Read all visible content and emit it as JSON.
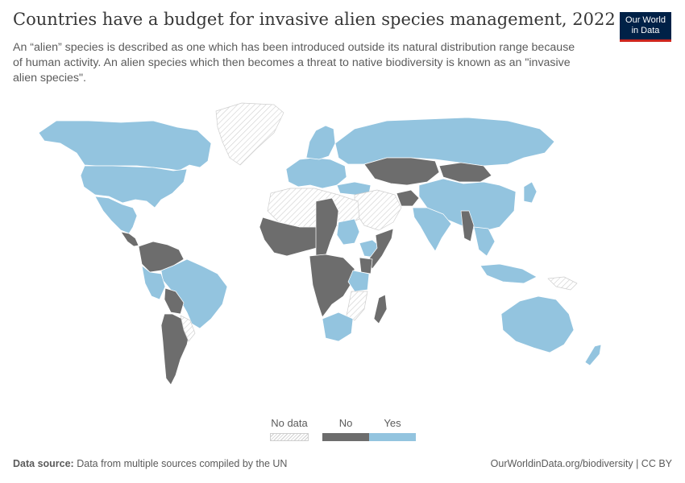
{
  "header": {
    "title": "Countries have a budget for invasive alien species management, 2022",
    "subtitle": "An “alien” species is described as one which has been introduced outside its natural distribution range because of human activity. An alien species which then becomes a threat to native biodiversity is known as an \"invasive alien species\".",
    "logo_line1": "Our World",
    "logo_line2": "in Data"
  },
  "legend": {
    "items": [
      {
        "label": "No data",
        "color": "#ffffff"
      },
      {
        "label": "No",
        "color": "#6d6d6d"
      },
      {
        "label": "Yes",
        "color": "#93c4df"
      }
    ]
  },
  "map_data": {
    "type": "choropleth",
    "year": 2022,
    "categories": [
      "No data",
      "No",
      "Yes"
    ],
    "colors": {
      "Yes": "#93c4df",
      "No": "#6d6d6d",
      "No data": "hatched"
    },
    "regions": [
      {
        "name": "Canada",
        "value": "Yes"
      },
      {
        "name": "United States",
        "value": "Yes"
      },
      {
        "name": "Mexico",
        "value": "Yes"
      },
      {
        "name": "Greenland",
        "value": "No data"
      },
      {
        "name": "Central America",
        "value": "No"
      },
      {
        "name": "Colombia",
        "value": "No"
      },
      {
        "name": "Venezuela",
        "value": "No"
      },
      {
        "name": "Brazil",
        "value": "Yes"
      },
      {
        "name": "Peru",
        "value": "Yes"
      },
      {
        "name": "Bolivia",
        "value": "No"
      },
      {
        "name": "Argentina",
        "value": "No"
      },
      {
        "name": "Chile",
        "value": "No"
      },
      {
        "name": "Paraguay",
        "value": "No data"
      },
      {
        "name": "Uruguay",
        "value": "No"
      },
      {
        "name": "Russia",
        "value": "Yes"
      },
      {
        "name": "Kazakhstan",
        "value": "No"
      },
      {
        "name": "Mongolia",
        "value": "No"
      },
      {
        "name": "China",
        "value": "Yes"
      },
      {
        "name": "India",
        "value": "Yes"
      },
      {
        "name": "Japan",
        "value": "Yes"
      },
      {
        "name": "Myanmar",
        "value": "No"
      },
      {
        "name": "Afghanistan",
        "value": "No"
      },
      {
        "name": "Saudi Arabia",
        "value": "No data"
      },
      {
        "name": "Southeast Asia",
        "value": "Yes"
      },
      {
        "name": "Papua New Guinea",
        "value": "No data"
      },
      {
        "name": "Australia",
        "value": "Yes"
      },
      {
        "name": "New Zealand",
        "value": "Yes"
      },
      {
        "name": "Western Europe",
        "value": "Yes"
      },
      {
        "name": "Scandinavia",
        "value": "Yes"
      },
      {
        "name": "Turkey",
        "value": "Yes"
      },
      {
        "name": "Iran",
        "value": "No data"
      },
      {
        "name": "North Africa",
        "value": "No data"
      },
      {
        "name": "West Africa",
        "value": "No"
      },
      {
        "name": "Central Africa",
        "value": "No"
      },
      {
        "name": "Sudan",
        "value": "Yes"
      },
      {
        "name": "Ethiopia",
        "value": "Yes"
      },
      {
        "name": "Somalia",
        "value": "No"
      },
      {
        "name": "Kenya",
        "value": "No"
      },
      {
        "name": "Tanzania",
        "value": "Yes"
      },
      {
        "name": "Angola",
        "value": "No"
      },
      {
        "name": "Mozambique",
        "value": "No data"
      },
      {
        "name": "Madagascar",
        "value": "No"
      },
      {
        "name": "South Africa",
        "value": "Yes"
      }
    ]
  },
  "footer": {
    "source_label": "Data source:",
    "source_text": "Data from multiple sources compiled by the UN",
    "url": "OurWorldinData.org/biodiversity",
    "license": "| CC BY"
  }
}
